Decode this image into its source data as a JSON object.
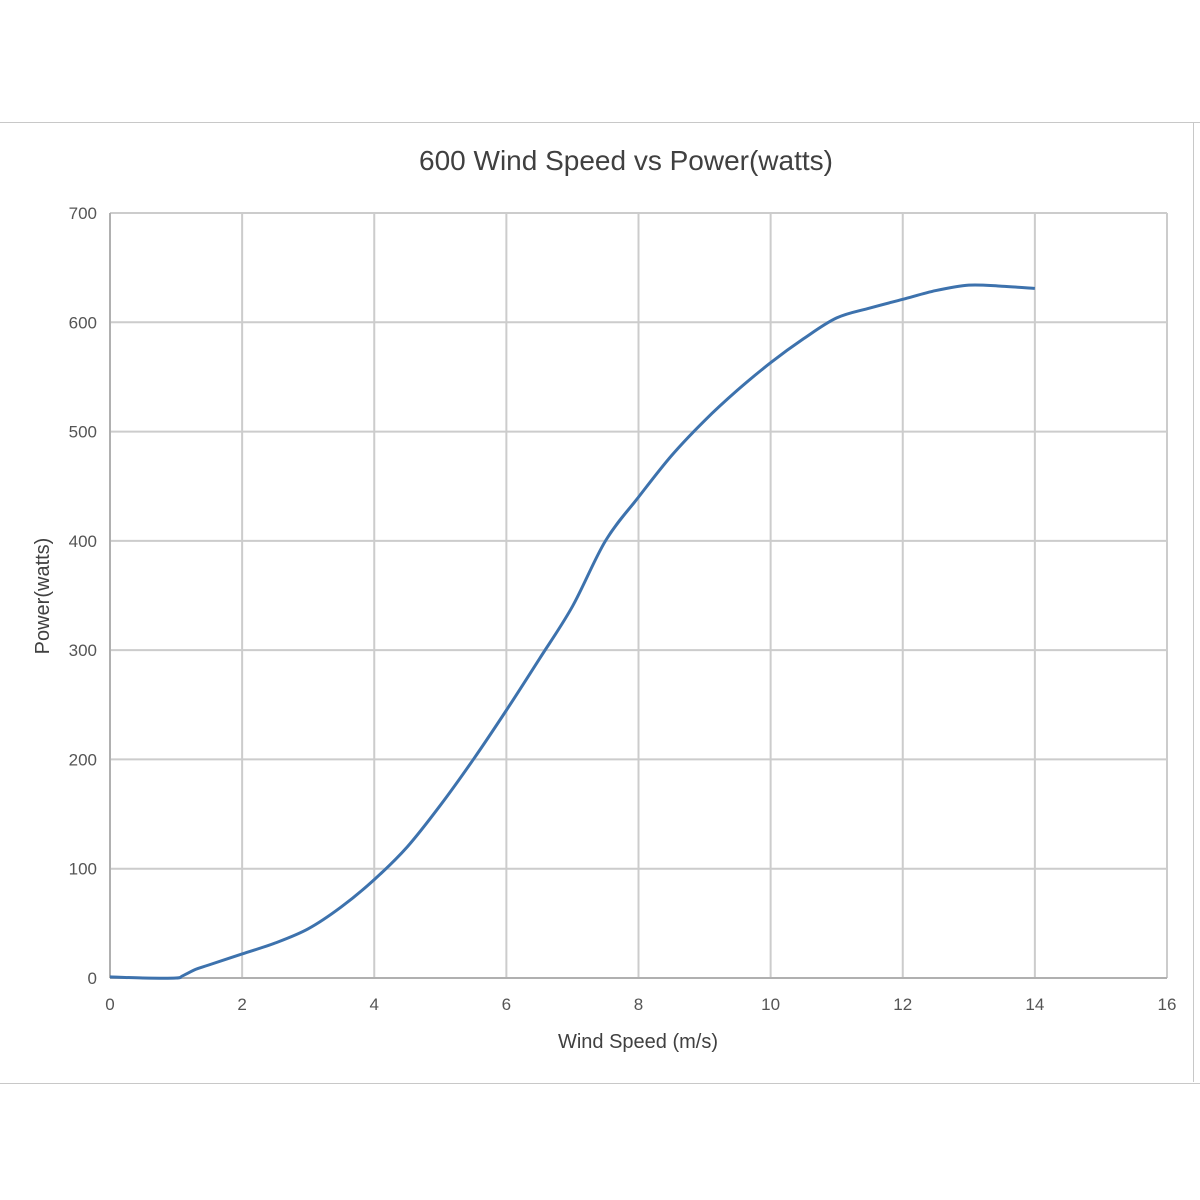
{
  "chart_data": {
    "type": "line",
    "title": "600 Wind Speed vs Power(watts)",
    "xlabel": "Wind Speed (m/s)",
    "ylabel": "Power(watts)",
    "xlim": [
      0,
      16
    ],
    "ylim": [
      0,
      700
    ],
    "xticks": [
      "0",
      "2",
      "4",
      "6",
      "8",
      "10",
      "12",
      "14",
      "16"
    ],
    "yticks": [
      "0",
      "100",
      "200",
      "300",
      "400",
      "500",
      "600",
      "700"
    ],
    "grid": true,
    "legend": "none",
    "series": [
      {
        "color": "#3d72ad",
        "x": [
          0,
          0.5,
          1.0,
          1.1,
          1.3,
          1.5,
          2.0,
          2.5,
          3.0,
          3.5,
          4.0,
          4.5,
          5.0,
          5.5,
          6.0,
          6.5,
          7.0,
          7.5,
          8.0,
          8.5,
          9.0,
          9.5,
          10.0,
          10.5,
          11.0,
          11.5,
          12.0,
          12.5,
          13.0,
          13.5,
          14.0
        ],
        "y": [
          1,
          0,
          0,
          2,
          8,
          12,
          22,
          32,
          45,
          65,
          90,
          120,
          158,
          200,
          245,
          292,
          340,
          400,
          440,
          478,
          510,
          538,
          563,
          585,
          604,
          613,
          621,
          629,
          634,
          633,
          631
        ]
      }
    ]
  },
  "colors": {
    "series": "#3d72ad",
    "grid": "#cccccc",
    "axis": "#b0b0b0",
    "text": "#404040"
  }
}
